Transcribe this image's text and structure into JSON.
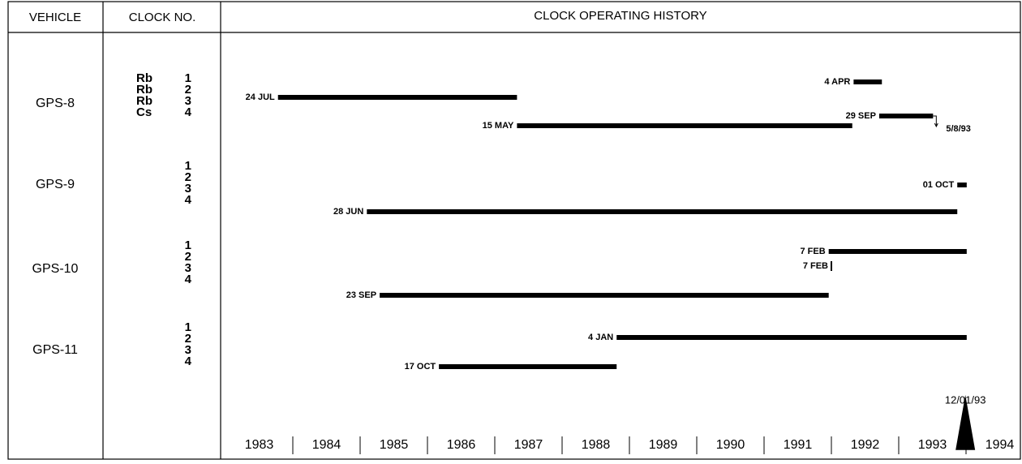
{
  "chart_data": {
    "type": "timeline",
    "title": "CLOCK OPERATING HISTORY",
    "column_headers": [
      "VEHICLE",
      "CLOCK NO."
    ],
    "xlim": [
      1983,
      1995
    ],
    "xticks": [
      1983,
      1984,
      1985,
      1986,
      1987,
      1988,
      1989,
      1990,
      1991,
      1992,
      1993,
      1994
    ],
    "vehicles": [
      {
        "name": "GPS-8",
        "clocks": [
          {
            "type": "Rb",
            "label": "1",
            "start": 1992.33,
            "end": 1992.75,
            "start_label": "4 APR"
          },
          {
            "type": "Rb",
            "label": "2",
            "start": 1983.78,
            "end": 1987.33,
            "start_label": "24 JUL"
          },
          {
            "type": "Rb",
            "label": "3",
            "start": 1992.71,
            "end": 1993.51,
            "start_label": "29 SEP",
            "end_label": "5/8/93"
          },
          {
            "type": "Cs",
            "label": "4",
            "start": 1987.33,
            "end": 1992.31,
            "start_label": "15 MAY"
          }
        ]
      },
      {
        "name": "GPS-9",
        "clocks": [
          {
            "label": "1"
          },
          {
            "label": "2",
            "start": 1993.87,
            "end": 1994.01,
            "start_label": "01 OCT"
          },
          {
            "label": "3"
          },
          {
            "label": "4",
            "start": 1985.1,
            "end": 1993.87,
            "start_label": "28 JUN"
          }
        ]
      },
      {
        "name": "GPS-10",
        "clocks": [
          {
            "label": "1"
          },
          {
            "label": "2",
            "start": 1991.96,
            "end": 1994.01,
            "start_label": "7 FEB"
          },
          {
            "label": "3",
            "start": 1992.0,
            "end": 1992.0,
            "start_label": "7 FEB"
          },
          {
            "label": "4",
            "start": 1985.29,
            "end": 1991.96,
            "start_label": "23 SEP"
          }
        ]
      },
      {
        "name": "GPS-11",
        "clocks": [
          {
            "label": "1"
          },
          {
            "label": "2",
            "start": 1988.81,
            "end": 1994.01,
            "start_label": "4 JAN"
          },
          {
            "label": "3"
          },
          {
            "label": "4",
            "start": 1986.17,
            "end": 1988.81,
            "start_label": "17 OCT"
          }
        ]
      }
    ],
    "marker": {
      "value": 1993.99,
      "label": "12/01/93"
    }
  }
}
